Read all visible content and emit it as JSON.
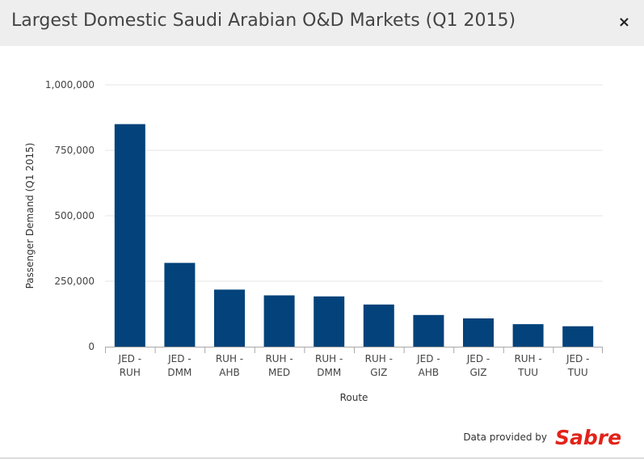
{
  "window": {
    "title": "Largest Domestic Saudi Arabian O&D Markets (Q1 2015)",
    "close_label": "×"
  },
  "chart_data": {
    "type": "bar",
    "title": "Largest Domestic Saudi Arabian O&D Markets (Q1 2015)",
    "xlabel": "Route",
    "ylabel": "Passenger Demand (Q1 2015)",
    "categories": [
      "JED - RUH",
      "JED - DMM",
      "RUH - AHB",
      "RUH - MED",
      "RUH - DMM",
      "RUH - GIZ",
      "JED - AHB",
      "JED - GIZ",
      "RUH - TUU",
      "JED - TUU"
    ],
    "values": [
      850000,
      320000,
      218000,
      196000,
      192000,
      161000,
      121000,
      108000,
      86000,
      78000
    ],
    "ylim": [
      0,
      1000000
    ],
    "yticks": [
      0,
      250000,
      500000,
      750000,
      1000000
    ],
    "ytick_labels": [
      "0",
      "250,000",
      "500,000",
      "750,000",
      "1,000,000"
    ],
    "grid": true,
    "legend": "none",
    "bar_color": "#03427a"
  },
  "footer": {
    "provided_by": "Data provided by",
    "logo_text": "Sabre",
    "logo_color": "#e2231a"
  }
}
